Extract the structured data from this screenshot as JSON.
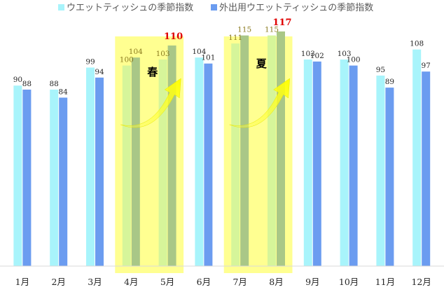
{
  "chart_data": {
    "type": "bar",
    "categories": [
      "1月",
      "2月",
      "3月",
      "4月",
      "5月",
      "6月",
      "7月",
      "8月",
      "9月",
      "10月",
      "11月",
      "12月"
    ],
    "series": [
      {
        "name": "ウエットティッシュの季節指数",
        "color": "#a8f4fb",
        "values": [
          90,
          88,
          99,
          100,
          103,
          104,
          111,
          115,
          103,
          103,
          95,
          108
        ]
      },
      {
        "name": "外出用ウエットティッシュの季節指数",
        "color": "#6b9cf0",
        "values": [
          88,
          84,
          94,
          104,
          110,
          101,
          115,
          117,
          102,
          100,
          89,
          97
        ]
      }
    ],
    "ylim": [
      0,
      125
    ],
    "legend_position": "top",
    "highlights": [
      {
        "label": "春",
        "months": [
          "4月",
          "5月"
        ],
        "color": "#ffff66"
      },
      {
        "label": "夏",
        "months": [
          "7月",
          "8月"
        ],
        "color": "#ffff66"
      }
    ],
    "peak_labels": [
      "5月",
      "8月"
    ],
    "peak_label_color": "#e00000"
  }
}
